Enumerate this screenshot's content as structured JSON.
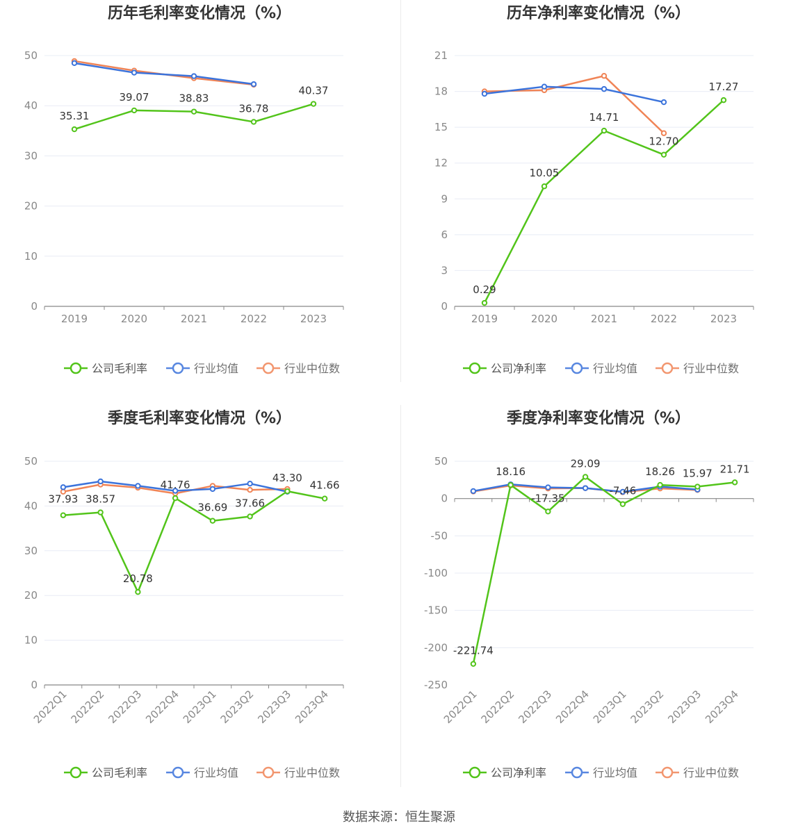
{
  "source": "数据来源：恒生聚源",
  "colors": {
    "company": "#52c41a",
    "avg": "#3b73db",
    "median": "#f08456",
    "grid": "#e8ecf5",
    "axis": "#888888"
  },
  "legend_icons": {
    "company": "circle-line-icon",
    "avg": "circle-line-icon",
    "median": "circle-line-icon"
  },
  "chart_data": [
    {
      "type": "line",
      "title": "历年毛利率变化情况（%）",
      "categories": [
        "2019",
        "2020",
        "2021",
        "2022",
        "2023"
      ],
      "ylim": [
        0,
        50
      ],
      "yticks": [
        0,
        10,
        20,
        30,
        40,
        50
      ],
      "grid": true,
      "legend_position": "bottom",
      "series": [
        {
          "name": "公司毛利率",
          "key": "company",
          "values": [
            35.31,
            39.07,
            38.83,
            36.78,
            40.37
          ],
          "labels": [
            "35.31",
            "39.07",
            "38.83",
            "36.78",
            "40.37"
          ]
        },
        {
          "name": "行业均值",
          "key": "avg",
          "values": [
            48.5,
            46.6,
            45.9,
            44.3,
            null
          ]
        },
        {
          "name": "行业中位数",
          "key": "median",
          "values": [
            48.9,
            47.0,
            45.5,
            44.2,
            null
          ]
        }
      ]
    },
    {
      "type": "line",
      "title": "历年净利率变化情况（%）",
      "categories": [
        "2019",
        "2020",
        "2021",
        "2022",
        "2023"
      ],
      "ylim": [
        0,
        21
      ],
      "yticks": [
        0,
        3,
        6,
        9,
        12,
        15,
        18,
        21
      ],
      "grid": true,
      "legend_position": "bottom",
      "series": [
        {
          "name": "公司净利率",
          "key": "company",
          "values": [
            0.29,
            10.05,
            14.71,
            12.7,
            17.27
          ],
          "labels": [
            "0.29",
            "10.05",
            "14.71",
            "12.70",
            "17.27"
          ]
        },
        {
          "name": "行业均值",
          "key": "avg",
          "values": [
            17.8,
            18.4,
            18.2,
            17.1,
            null
          ]
        },
        {
          "name": "行业中位数",
          "key": "median",
          "values": [
            18.0,
            18.1,
            19.3,
            14.5,
            null
          ]
        }
      ]
    },
    {
      "type": "line",
      "title": "季度毛利率变化情况（%）",
      "categories": [
        "2022Q1",
        "2022Q2",
        "2022Q3",
        "2022Q4",
        "2023Q1",
        "2023Q2",
        "2023Q3",
        "2023Q4"
      ],
      "ylim": [
        0,
        50
      ],
      "yticks": [
        0,
        10,
        20,
        30,
        40,
        50
      ],
      "grid": true,
      "legend_position": "bottom",
      "rotate_x_labels": true,
      "series": [
        {
          "name": "公司毛利率",
          "key": "company",
          "values": [
            37.93,
            38.57,
            20.78,
            41.76,
            36.69,
            37.66,
            43.3,
            41.66
          ],
          "labels": [
            "37.93",
            "38.57",
            "20.78",
            "41.76",
            "36.69",
            "37.66",
            "43.30",
            "41.66"
          ]
        },
        {
          "name": "行业均值",
          "key": "avg",
          "values": [
            44.2,
            45.5,
            44.5,
            43.4,
            43.8,
            45.0,
            43.2,
            null
          ]
        },
        {
          "name": "行业中位数",
          "key": "median",
          "values": [
            43.2,
            44.8,
            44.1,
            42.8,
            44.5,
            43.6,
            43.8,
            null
          ]
        }
      ]
    },
    {
      "type": "line",
      "title": "季度净利率变化情况（%）",
      "categories": [
        "2022Q1",
        "2022Q2",
        "2022Q3",
        "2022Q4",
        "2023Q1",
        "2023Q2",
        "2023Q3",
        "2023Q4"
      ],
      "ylim": [
        -250,
        50
      ],
      "yticks": [
        -250,
        -200,
        -150,
        -100,
        -50,
        0,
        50
      ],
      "grid": true,
      "legend_position": "bottom",
      "rotate_x_labels": true,
      "series": [
        {
          "name": "公司净利率",
          "key": "company",
          "values": [
            -221.74,
            18.16,
            -17.35,
            29.09,
            -7.46,
            18.26,
            15.97,
            21.71
          ],
          "labels": [
            "-221.74",
            "18.16",
            "-17.35",
            "29.09",
            "-7.46",
            "18.26",
            "15.97",
            "21.71"
          ]
        },
        {
          "name": "行业均值",
          "key": "avg",
          "values": [
            10,
            19,
            15,
            14,
            9,
            16,
            12,
            null
          ]
        },
        {
          "name": "行业中位数",
          "key": "median",
          "values": [
            9.5,
            17.5,
            13.5,
            14,
            8.5,
            13.5,
            11.5,
            null
          ]
        }
      ]
    }
  ]
}
